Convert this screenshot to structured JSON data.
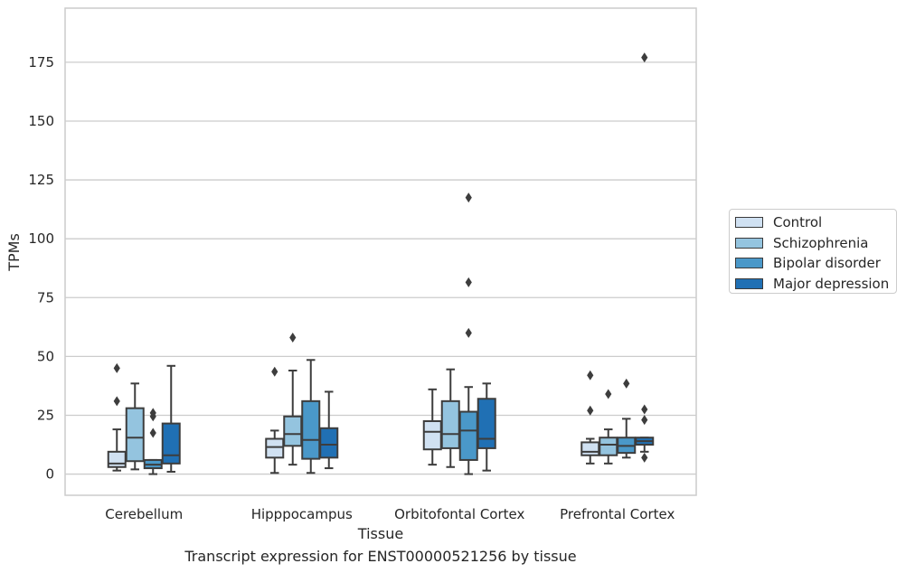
{
  "chart_data": {
    "type": "box",
    "xlabel": "Tissue",
    "ylabel": "TPMs",
    "caption": "Transcript expression for ENST00000521256 by tissue",
    "categories": [
      "Cerebellum",
      "Hipppocampus",
      "Orbitofontal Cortex",
      "Prefrontal Cortex"
    ],
    "ylim": [
      -9,
      198
    ],
    "yticks": [
      0,
      25,
      50,
      75,
      100,
      125,
      150,
      175
    ],
    "grid": "horizontal",
    "legend_position": "right",
    "series": [
      {
        "name": "Control",
        "color": "#d0e1f2",
        "boxes": [
          {
            "whislo": 1.5,
            "q1": 3,
            "median": 4.5,
            "q3": 9.5,
            "whishi": 19,
            "fliers": [
              31,
              45
            ]
          },
          {
            "whislo": 0.5,
            "q1": 7,
            "median": 11.5,
            "q3": 15,
            "whishi": 18.5,
            "fliers": [
              43.5
            ]
          },
          {
            "whislo": 4,
            "q1": 10.5,
            "median": 18,
            "q3": 22.5,
            "whishi": 36,
            "fliers": []
          },
          {
            "whislo": 4.5,
            "q1": 8,
            "median": 9.5,
            "q3": 13.5,
            "whishi": 15,
            "fliers": [
              27,
              42
            ]
          }
        ]
      },
      {
        "name": "Schizophrenia",
        "color": "#94c4df",
        "boxes": [
          {
            "whislo": 2,
            "q1": 5.5,
            "median": 15.5,
            "q3": 28,
            "whishi": 38.5,
            "fliers": []
          },
          {
            "whislo": 4,
            "q1": 12,
            "median": 17,
            "q3": 24.5,
            "whishi": 44,
            "fliers": [
              58
            ]
          },
          {
            "whislo": 3,
            "q1": 11,
            "median": 17,
            "q3": 31,
            "whishi": 44.5,
            "fliers": []
          },
          {
            "whislo": 4.5,
            "q1": 8,
            "median": 12.5,
            "q3": 15.5,
            "whishi": 19,
            "fliers": [
              34
            ]
          }
        ]
      },
      {
        "name": "Bipolar disorder",
        "color": "#4a98c9",
        "boxes": [
          {
            "whislo": 0,
            "q1": 2.5,
            "median": 4,
            "q3": 6,
            "whishi": 6,
            "fliers": [
              17.5,
              24.5,
              26
            ]
          },
          {
            "whislo": 0.5,
            "q1": 6.5,
            "median": 14.5,
            "q3": 31,
            "whishi": 48.5,
            "fliers": []
          },
          {
            "whislo": 0,
            "q1": 6,
            "median": 18.5,
            "q3": 26.5,
            "whishi": 37,
            "fliers": [
              60,
              81.5,
              117.5
            ]
          },
          {
            "whislo": 7,
            "q1": 9,
            "median": 12,
            "q3": 15.5,
            "whishi": 23.5,
            "fliers": [
              38.5
            ]
          }
        ]
      },
      {
        "name": "Major depression",
        "color": "#2070b4",
        "boxes": [
          {
            "whislo": 1,
            "q1": 4.5,
            "median": 8,
            "q3": 21.5,
            "whishi": 46,
            "fliers": []
          },
          {
            "whislo": 2.5,
            "q1": 7,
            "median": 12.5,
            "q3": 19.5,
            "whishi": 35,
            "fliers": []
          },
          {
            "whislo": 1.5,
            "q1": 11,
            "median": 15,
            "q3": 32,
            "whishi": 38.5,
            "fliers": []
          },
          {
            "whislo": 9.5,
            "q1": 12.5,
            "median": 14,
            "q3": 15.5,
            "whishi": 15.5,
            "fliers": [
              7,
              23,
              27.5,
              177
            ]
          }
        ]
      }
    ],
    "extra_fliers_note_unused": null
  }
}
